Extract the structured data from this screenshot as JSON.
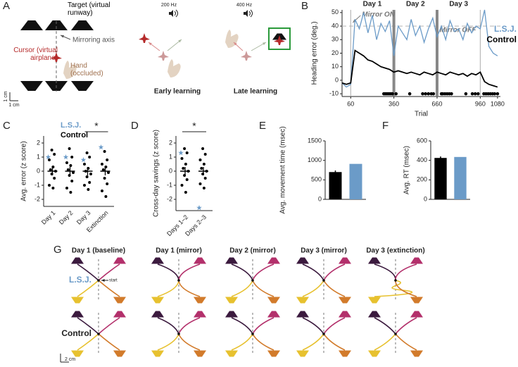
{
  "panel_letters": [
    "A",
    "B",
    "C",
    "D",
    "E",
    "F",
    "G"
  ],
  "panel_a": {
    "target": "Target (virtual runway)",
    "mirroring_axis": "Mirroring axis",
    "cursor": "Cursor (virtual airplane)",
    "hand": "Hand (occluded)",
    "scale_labels": [
      "1 cm",
      "1 cm"
    ],
    "early_tone": "200 Hz",
    "late_tone": "400 Hz",
    "early_title": "Early learning",
    "late_title": "Late learning"
  },
  "chart_data": [
    {
      "type": "line",
      "x": [
        0,
        30,
        60,
        90,
        120,
        150,
        180,
        210,
        240,
        270,
        300,
        330,
        360,
        390,
        420,
        450,
        480,
        510,
        540,
        570,
        600,
        630,
        660,
        690,
        720,
        750,
        780,
        810,
        840,
        870,
        900,
        930,
        960,
        990,
        1020,
        1050,
        1080
      ],
      "series": [
        {
          "name": "L.S.J.",
          "color": "#6b9bc8",
          "values": [
            -2,
            -5,
            -3,
            45,
            38,
            50,
            35,
            48,
            30,
            42,
            36,
            44,
            18,
            40,
            35,
            30,
            45,
            33,
            40,
            28,
            38,
            46,
            32,
            40,
            30,
            44,
            36,
            38,
            30,
            42,
            35,
            40,
            38,
            52,
            25,
            20,
            18
          ]
        },
        {
          "name": "Control",
          "color": "#000000",
          "values": [
            -2,
            -3,
            -2,
            22,
            20,
            18,
            15,
            14,
            12,
            10,
            9,
            8,
            6,
            7,
            6,
            5,
            6,
            5,
            4,
            6,
            5,
            4,
            6,
            5,
            4,
            6,
            5,
            4,
            5,
            3,
            5,
            4,
            6,
            -1,
            -3,
            -4,
            -5
          ]
        }
      ],
      "xlim": [
        0,
        1100
      ],
      "ylim": [
        -12,
        52
      ],
      "xticks": [
        60,
        360,
        660,
        960,
        1080
      ],
      "yticks": [
        -10,
        0,
        10,
        20,
        30,
        40,
        50
      ],
      "xlabel": "Trial",
      "ylabel": "Heading error (deg.)",
      "boundaries": [
        60,
        360,
        660,
        960
      ],
      "days": [
        "Day 1",
        "Day 2",
        "Day 3"
      ],
      "annotations": [
        "Mirror ON",
        "Mirror OFF"
      ],
      "reference_y": 40,
      "significant_trials": [
        290,
        300,
        310,
        320,
        330,
        340,
        350,
        375,
        470,
        560,
        580,
        600,
        620,
        635,
        690,
        700,
        715,
        730,
        745,
        760,
        860,
        905,
        925,
        945,
        985,
        1000,
        1015,
        1030,
        1045,
        1060,
        1080
      ],
      "significance_y": -10
    },
    {
      "type": "strip",
      "categories": [
        "Day 1",
        "Day 2",
        "Day 3",
        "Extinction"
      ],
      "series": [
        {
          "name": "L.S.J.",
          "color": "#6b9bc8",
          "values": [
            1.0,
            1.0,
            0.8,
            1.7
          ]
        },
        {
          "name": "Control",
          "color": "#000000",
          "points": [
            [
              1.5,
              1.2,
              0.8,
              0.3,
              0.1,
              0,
              -0.2,
              -0.5,
              -1.0,
              -1.2
            ],
            [
              1.6,
              1.0,
              0.6,
              0.4,
              0.1,
              -0.1,
              -0.3,
              -0.7,
              -1.2,
              -1.5
            ],
            [
              1.3,
              1.0,
              0.5,
              0.2,
              0,
              -0.2,
              -0.4,
              -0.8,
              -1.0,
              -1.3
            ],
            [
              1.4,
              0.8,
              0.5,
              0.3,
              0.1,
              -0.1,
              -0.5,
              -0.9,
              -1.4,
              -1.8
            ]
          ],
          "means": [
            0,
            0,
            0,
            0
          ],
          "errors": [
            0.3,
            0.3,
            0.3,
            0.3
          ]
        }
      ],
      "ylim": [
        -2.5,
        2.5
      ],
      "yticks": [
        -2,
        -1,
        0,
        1,
        2
      ],
      "ylabel": "Avg. error (z score)",
      "significance": "*",
      "legend": true
    },
    {
      "type": "strip",
      "categories": [
        "Days 1–2",
        "Days 2–3"
      ],
      "series": [
        {
          "name": "L.S.J.",
          "color": "#6b9bc8",
          "values": [
            1.3,
            -2.6
          ]
        },
        {
          "name": "Control",
          "color": "#000000",
          "points": [
            [
              1.6,
              1.3,
              0.9,
              0.5,
              0.2,
              0,
              -0.3,
              -0.6,
              -1.0,
              -1.5
            ],
            [
              1.6,
              1.2,
              0.8,
              0.5,
              0.2,
              0,
              -0.2,
              -0.5,
              -0.9,
              -1.2
            ]
          ],
          "means": [
            0,
            0
          ],
          "errors": [
            0.3,
            0.3
          ]
        }
      ],
      "ylim": [
        -2.8,
        2.5
      ],
      "yticks": [
        -2,
        -1,
        0,
        1,
        2
      ],
      "ylabel": "Cross-day savings (z score)",
      "significance": "*",
      "legend": false
    },
    {
      "type": "bar",
      "categories": [
        null,
        null
      ],
      "values": [
        700,
        910
      ],
      "errors": [
        40,
        null
      ],
      "colors": [
        "#000000",
        "#6b9bc8"
      ],
      "ylim": [
        0,
        1500
      ],
      "yticks": [
        0,
        500,
        1000,
        1500
      ],
      "ylabel": "Avg. movement time (msec)"
    },
    {
      "type": "bar",
      "categories": [
        null,
        null
      ],
      "values": [
        425,
        435
      ],
      "errors": [
        15,
        null
      ],
      "colors": [
        "#000000",
        "#6b9bc8"
      ],
      "ylim": [
        0,
        600
      ],
      "yticks": [
        0,
        200,
        400,
        600
      ],
      "ylabel": "Avg. RT (msec)"
    }
  ],
  "panel_g": {
    "columns": [
      "Day 1 (baseline)",
      "Day 1 (mirror)",
      "Day 2 (mirror)",
      "Day 3 (mirror)",
      "Day 3 (extinction)"
    ],
    "rows": [
      "L.S.J.",
      "Control"
    ],
    "start_label": "start",
    "scale_label": "2 cm"
  }
}
